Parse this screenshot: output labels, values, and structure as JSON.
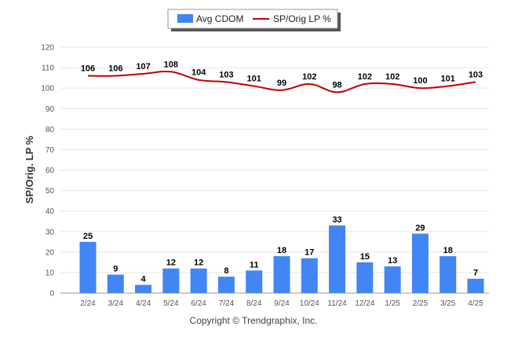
{
  "chart_data": {
    "type": "bar",
    "categories": [
      "2/24",
      "3/24",
      "4/24",
      "5/24",
      "6/24",
      "7/24",
      "8/24",
      "9/24",
      "10/24",
      "11/24",
      "12/24",
      "1/25",
      "2/25",
      "3/25",
      "4/25"
    ],
    "series": [
      {
        "name": "Avg CDOM",
        "type": "bar",
        "color": "#4285f4",
        "values": [
          25,
          9,
          4,
          12,
          12,
          8,
          11,
          18,
          17,
          33,
          15,
          13,
          29,
          18,
          7
        ]
      },
      {
        "name": "SP/Orig LP %",
        "type": "line",
        "color": "#c00000",
        "values": [
          106,
          106,
          107,
          108,
          104,
          103,
          101,
          99,
          102,
          98,
          102,
          102,
          100,
          101,
          103
        ]
      }
    ],
    "ylabel": "SP/Orig. LP %",
    "ylim": [
      0,
      120
    ],
    "yticks": [
      0,
      10,
      20,
      30,
      40,
      50,
      60,
      70,
      80,
      90,
      100,
      110,
      120
    ],
    "grid": true,
    "legend": "top-center"
  },
  "footer": {
    "copyright": "Copyright © Trendgraphix, Inc."
  }
}
